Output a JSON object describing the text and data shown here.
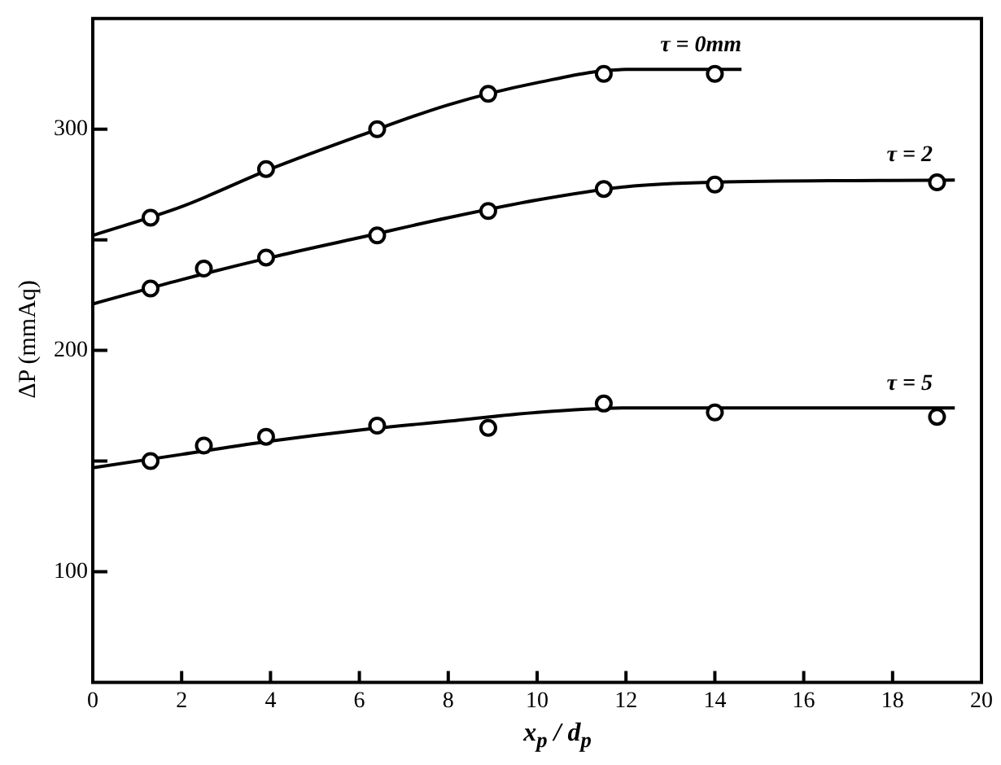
{
  "chart_data": {
    "type": "scatter",
    "xlabel": "x$_{p}$ / d$_{p}$",
    "ylabel": "ΔP (mmAq)",
    "xlim": [
      0,
      20
    ],
    "xticks": [
      0,
      2,
      4,
      6,
      8,
      10,
      12,
      14,
      16,
      18,
      20
    ],
    "ylim": [
      50,
      350
    ],
    "yticks": [
      100,
      {
        "value": 150,
        "label": null
      },
      200,
      {
        "value": 250,
        "label": null
      },
      300
    ],
    "grid": false,
    "legend": false,
    "marker": "circle",
    "series": [
      {
        "color": "#000000",
        "x": [
          1.3,
          3.9,
          6.4,
          8.9,
          11.5,
          14.0
        ],
        "values": [
          260,
          282,
          300,
          316,
          325,
          325
        ]
      },
      {
        "color": "#000000",
        "x": [
          1.3,
          2.5,
          3.9,
          6.4,
          8.9,
          11.5,
          14.0,
          19.0
        ],
        "values": [
          228,
          237,
          242,
          252,
          263,
          273,
          275,
          276
        ]
      },
      {
        "color": "#000000",
        "x": [
          1.3,
          2.5,
          3.9,
          6.4,
          8.9,
          11.5,
          14.0,
          19.0
        ],
        "values": [
          150,
          157,
          161,
          166,
          165,
          176,
          172,
          170
        ]
      },
      {
        "type": "line",
        "name": "τ = 0mm",
        "color": "#000000",
        "marker": "none",
        "line_style": "solid",
        "x": [
          0,
          2,
          4,
          6,
          8,
          10,
          12,
          14.6
        ],
        "values": [
          252,
          265,
          282,
          297,
          311,
          321,
          327,
          327
        ]
      },
      {
        "type": "line",
        "name": "τ = 2",
        "color": "#000000",
        "marker": "none",
        "line_style": "solid",
        "x": [
          0,
          2,
          4,
          6,
          8,
          10,
          12,
          14,
          19.4
        ],
        "values": [
          221,
          232,
          242,
          251,
          260,
          268,
          274,
          276,
          277
        ]
      },
      {
        "type": "line",
        "name": "τ = 5",
        "color": "#000000",
        "marker": "none",
        "line_style": "solid",
        "x": [
          0,
          2,
          4,
          6,
          8,
          10,
          12,
          19.4
        ],
        "values": [
          147,
          153,
          159,
          164,
          168,
          172,
          174,
          174
        ]
      }
    ]
  }
}
